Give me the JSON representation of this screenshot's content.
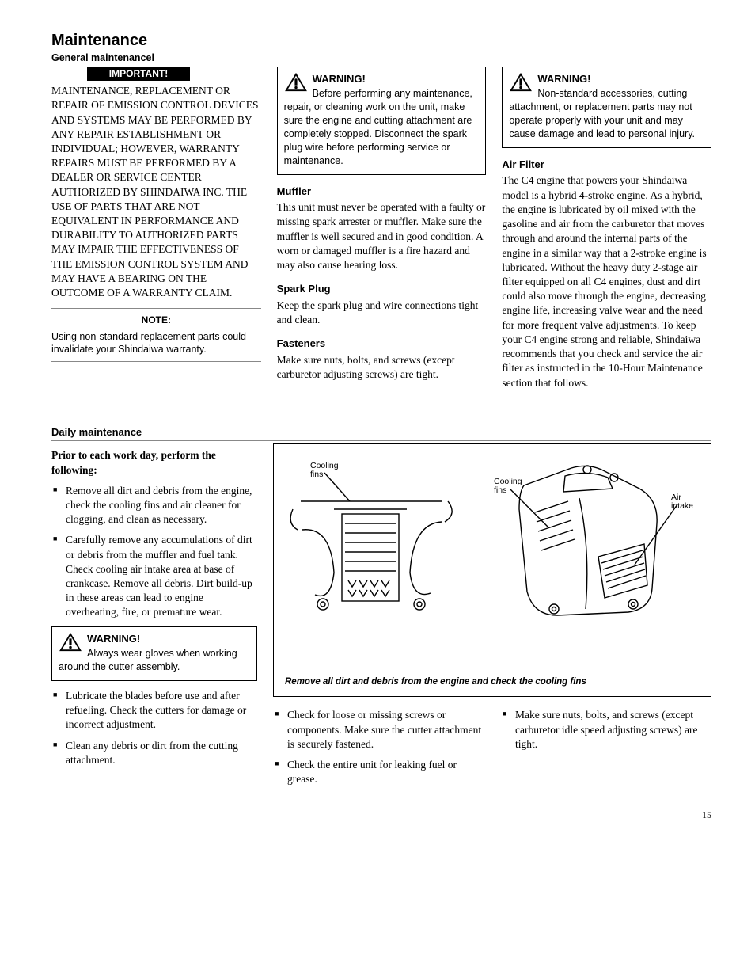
{
  "page_number": "15",
  "title": "Maintenance",
  "subtitle": "General maintenancel",
  "important_label": "IMPORTANT!",
  "maintenance_caps": "MAINTENANCE, REPLACEMENT OR REPAIR OF EMISSION CONTROL DEVICES AND SYSTEMS MAY BE PERFORMED BY ANY REPAIR ESTABLISHMENT OR INDIVIDUAL; HOWEVER, WARRANTY REPAIRS MUST BE PERFORMED BY A DEALER OR SERVICE CENTER AUTHORIZED BY SHINDAIWA INC. THE USE OF PARTS THAT ARE NOT EQUIVALENT IN PERFORMANCE AND DURABILITY TO AUTHORIZED PARTS MAY IMPAIR THE EFFECTIVENESS OF THE EMISSION CONTROL SYSTEM AND MAY HAVE A BEARING ON THE OUTCOME OF A WARRANTY CLAIM.",
  "note_label": "NOTE:",
  "note_text": "Using non-standard replacement parts could invalidate your Shindaiwa warranty.",
  "warning_label": "WARNING!",
  "warning1_text": "Before performing any maintenance, repair, or cleaning work on the unit, make sure the engine and cutting attachment are completely stopped. Disconnect the spark plug wire before performing service or maintenance.",
  "warning2_text": "Non-standard accessories, cutting attachment, or replacement parts may not operate properly with your unit and may cause damage and lead to personal injury.",
  "warning3_text": "Always wear gloves when working around the cutter assembly.",
  "muffler_h": "Muffler",
  "muffler_text": "This unit must never be operated with a faulty or missing spark arrester or muffler. Make sure the muffler is well secured and in good condition. A worn or damaged muffler is a fire hazard and may also cause hearing loss.",
  "sparkplug_h": "Spark Plug",
  "sparkplug_text": "Keep the spark plug and wire connections tight and clean.",
  "fasteners_h": "Fasteners",
  "fasteners_text": "Make sure nuts, bolts, and screws (except carburetor adjusting screws) are tight.",
  "airfilter_h": "Air Filter",
  "airfilter_text": "The C4 engine that powers your Shindaiwa model is a hybrid 4-stroke engine. As a hybrid, the engine is lubricated by oil mixed with the gasoline and air from the carburetor that moves through and around the internal parts of the engine in a similar way that a 2-stroke engine is lubricated. Without the heavy duty 2-stage air filter equipped on all C4 engines, dust and dirt could also move through the engine, decreasing engine life, increasing valve wear and the need for more frequent valve adjustments. To keep your C4 engine strong and reliable, Shindaiwa recommends that you check and service the air filter as instructed in the 10-Hour Maintenance section that follows.",
  "daily_h": "Daily maintenance",
  "daily_intro": "Prior to each work day, perform the following:",
  "daily_items_left1": [
    "Remove all dirt and debris from the engine, check the cooling fins and air cleaner for clogging, and clean as necessary.",
    "Carefully remove any accumulations of dirt or debris from the muffler and fuel tank. Check cooling air intake area at base of crankcase.  Remove all debris. Dirt build-up in these areas can lead to engine overheating, fire, or premature wear."
  ],
  "daily_items_left2": [
    "Lubricate the blades before use and after refueling. Check the cutters for damage or incorrect adjustment.",
    "Clean any debris or dirt from the cutting attachment."
  ],
  "daily_items_mid": [
    "Check for loose or missing screws or components. Make sure the cutter attachment is securely fastened.",
    "Check the entire unit for leaking fuel or grease."
  ],
  "daily_items_right": [
    "Make sure nuts, bolts, and screws (except carburetor idle speed adjusting screws) are tight."
  ],
  "diagram": {
    "label_cooling_fins": "Cooling fins",
    "label_air_intake": "Air intake",
    "caption": "Remove all dirt and debris from the engine and check the cooling fins"
  }
}
